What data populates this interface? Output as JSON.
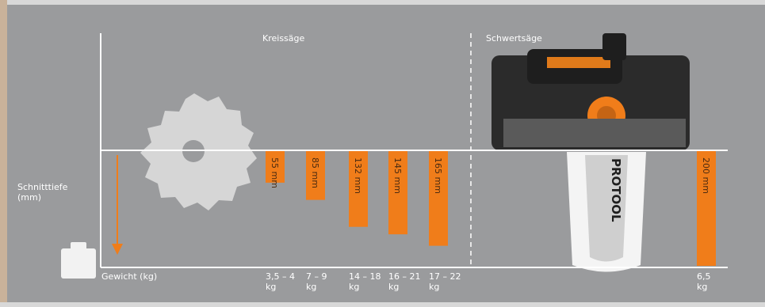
{
  "chart_data": {
    "type": "bar",
    "orientation": "hanging",
    "groups": [
      {
        "label": "Kreissäge"
      },
      {
        "label": "Schwertsäge"
      }
    ],
    "ylabel": "Schnitttiefe\n(mm)",
    "xlabel": "Gewicht (kg)",
    "bars": [
      {
        "group": "Kreissäge",
        "depth_mm": 55,
        "label": "55 mm",
        "weight": "3,5 – 4\nkg"
      },
      {
        "group": "Kreissäge",
        "depth_mm": 85,
        "label": "85 mm",
        "weight": "7 – 9\nkg"
      },
      {
        "group": "Kreissäge",
        "depth_mm": 132,
        "label": "132 mm",
        "weight": "14 – 18\nkg"
      },
      {
        "group": "Kreissäge",
        "depth_mm": 145,
        "label": "145 mm",
        "weight": "16 – 21\nkg"
      },
      {
        "group": "Kreissäge",
        "depth_mm": 165,
        "label": "165 mm",
        "weight": "17 – 22\nkg"
      },
      {
        "group": "Schwertsäge",
        "depth_mm": 200,
        "label": "200 mm",
        "weight": "6,5\nkg"
      }
    ],
    "product_brand": "PROTOOL",
    "colors": {
      "background": "#9a9b9d",
      "bar": "#f07d1a",
      "axis": "#ffffff",
      "arrow": "#f07d1a"
    }
  }
}
